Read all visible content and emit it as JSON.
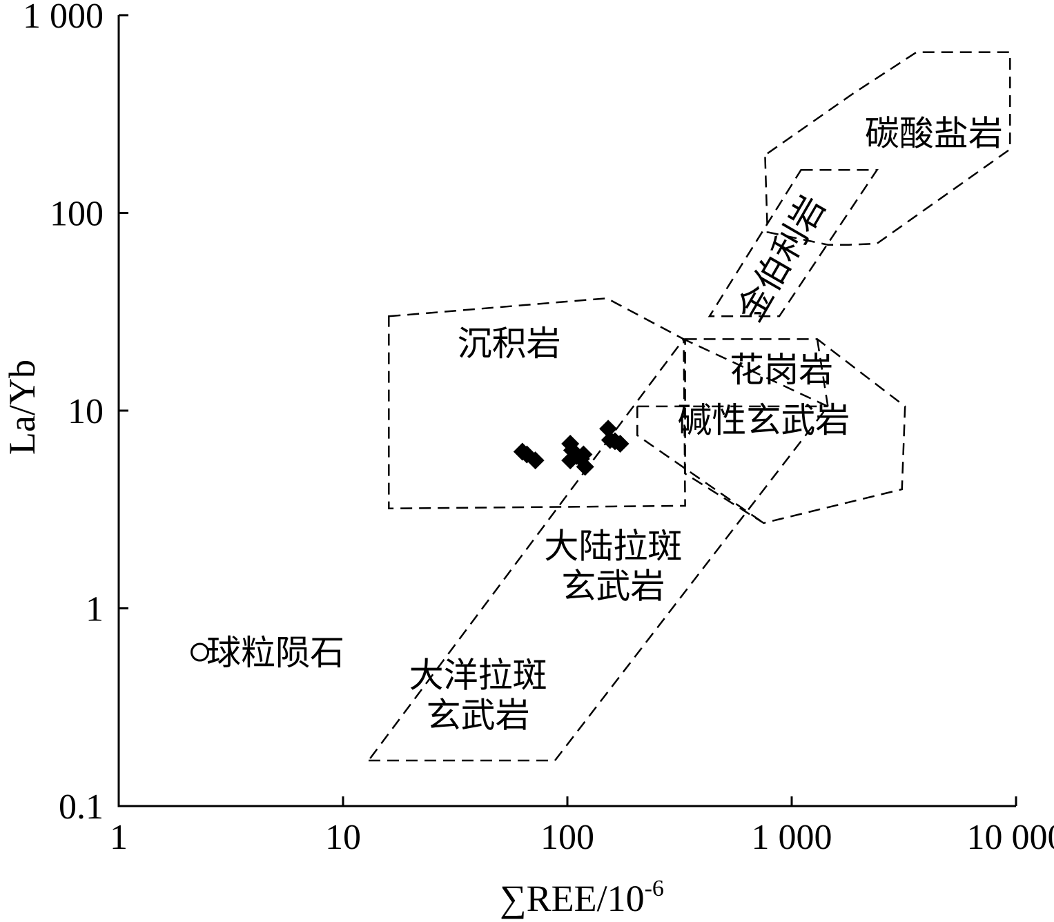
{
  "chart_data": {
    "type": "scatter",
    "title": "",
    "xlabel": "∑REE/10",
    "xlabel_superscript": "-6",
    "ylabel": "La/Yb",
    "xscale": "log",
    "yscale": "log",
    "xlim": [
      1,
      10000
    ],
    "ylim": [
      0.1,
      1000
    ],
    "xticks": [
      1,
      10,
      100,
      1000,
      10000
    ],
    "yticks": [
      0.1,
      1,
      10,
      100,
      1000
    ],
    "xtick_labels": [
      "1",
      "10",
      "100",
      "1 000",
      "10 000"
    ],
    "ytick_labels": [
      "0.1",
      "1",
      "10",
      "100",
      "1 000"
    ],
    "grid": false,
    "series": [
      {
        "marker": "diamond",
        "color": "#000000",
        "points": [
          {
            "x": 63,
            "y": 6.2
          },
          {
            "x": 66,
            "y": 6.0
          },
          {
            "x": 72,
            "y": 5.6
          },
          {
            "x": 103,
            "y": 6.8
          },
          {
            "x": 105,
            "y": 6.3
          },
          {
            "x": 103,
            "y": 5.6
          },
          {
            "x": 110,
            "y": 5.9
          },
          {
            "x": 115,
            "y": 5.7
          },
          {
            "x": 118,
            "y": 6.0
          },
          {
            "x": 120,
            "y": 5.2
          },
          {
            "x": 152,
            "y": 8.1
          },
          {
            "x": 155,
            "y": 7.1
          },
          {
            "x": 163,
            "y": 7.0
          },
          {
            "x": 172,
            "y": 6.8
          }
        ]
      },
      {
        "marker": "open-circle",
        "color": "#000000",
        "points": [
          {
            "x": 2.3,
            "y": 0.6
          }
        ]
      }
    ],
    "fields": [
      {
        "id": "carbonatite",
        "label": "碳酸盐岩",
        "polygon": [
          [
            780,
            200
          ],
          [
            1870,
            400
          ],
          [
            3600,
            650
          ],
          [
            9400,
            650
          ],
          [
            9400,
            210
          ],
          [
            2400,
            70
          ],
          [
            1800,
            69
          ],
          [
            1450,
            69
          ],
          [
            780,
            80
          ],
          [
            760,
            200
          ]
        ],
        "label_at": [
          4300,
          220
        ]
      },
      {
        "id": "kimberlite",
        "label": "金伯利岩",
        "polygon": [
          [
            1100,
            165
          ],
          [
            2400,
            165
          ],
          [
            880,
            30
          ],
          [
            430,
            30
          ]
        ],
        "label_at": [
          1000,
          55
        ],
        "label_rotation": -60
      },
      {
        "id": "sediment",
        "label": "沉积岩",
        "polygon": [
          [
            16,
            30
          ],
          [
            150,
            37
          ],
          [
            330,
            23
          ],
          [
            335,
            3.3
          ],
          [
            16,
            3.2
          ]
        ],
        "label_at": [
          55,
          19
        ]
      },
      {
        "id": "granite",
        "label": "花岗岩",
        "polygon": [
          [
            335,
            23
          ],
          [
            1300,
            23
          ],
          [
            3200,
            10.5
          ],
          [
            3100,
            4.0
          ],
          [
            750,
            2.7
          ],
          [
            335,
            4.8
          ]
        ],
        "label_at": [
          900,
          14
        ]
      },
      {
        "id": "alkali-basalt",
        "label": "碱性玄武岩",
        "polygon": [
          [
            205,
            10.5
          ],
          [
            1450,
            10.5
          ]
        ],
        "label_at": [
          750,
          7.8
        ]
      },
      {
        "id": "continental-tholeiite",
        "label": "大陆拉斑玄武岩",
        "label_lines": [
          "大陆拉斑",
          "玄武岩"
        ],
        "label_at": [
          160,
          1.8
        ]
      },
      {
        "id": "oceanic-tholeiite",
        "label": "大洋拉斑玄武岩",
        "label_lines": [
          "大洋拉斑",
          "玄武岩"
        ],
        "polygon": [
          [
            13,
            0.17
          ],
          [
            88,
            0.17
          ],
          [
            1450,
            10.5
          ],
          [
            330,
            23
          ]
        ],
        "label_at": [
          40,
          0.4
        ]
      }
    ],
    "annotations": [
      {
        "text": "球粒陨石",
        "at": [
          5,
          0.6
        ]
      }
    ]
  }
}
